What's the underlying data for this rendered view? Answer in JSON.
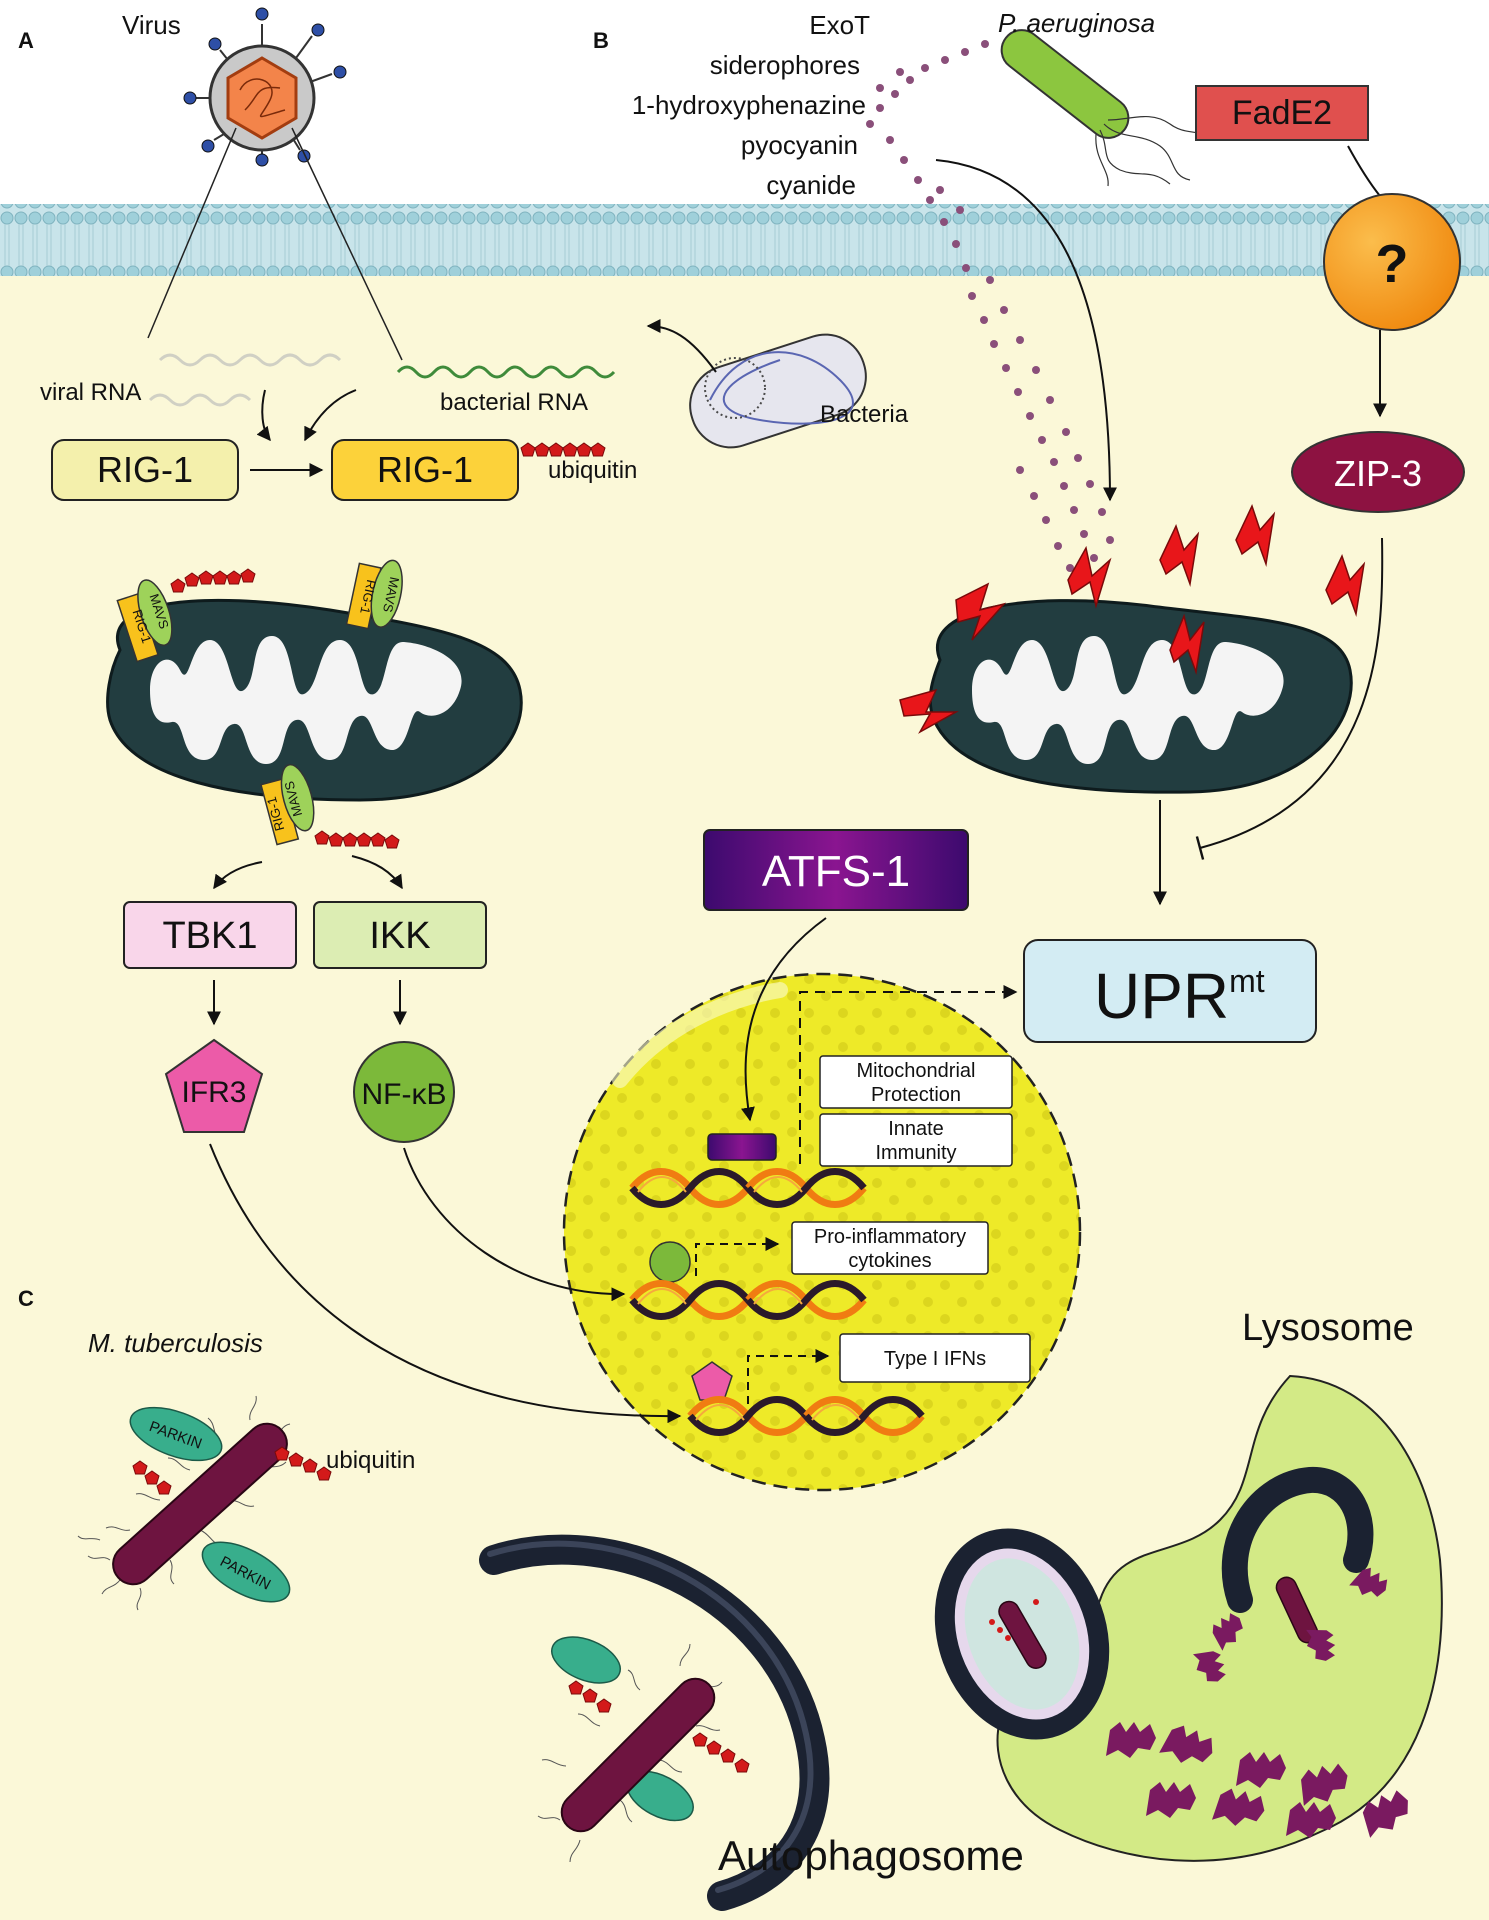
{
  "panels": {
    "a": "A",
    "b": "B",
    "c": "C"
  },
  "labels": {
    "virus": "Virus",
    "viral_rna": "viral RNA",
    "bacterial_rna": "bacterial RNA",
    "bacteria": "Bacteria",
    "ubiquitin_top": "ubiquitin",
    "ubiquitin_c": "ubiquitin",
    "p_aeruginosa": "P. aeruginosa",
    "m_tuberculosis": "M. tuberculosis",
    "autophagosome": "Autophagosome",
    "lysosome": "Lysosome"
  },
  "toxins": [
    "ExoT",
    "siderophores",
    "1-hydroxyphenazine",
    "pyocyanin",
    "cyanide"
  ],
  "boxes": {
    "rig1_a": "RIG-1",
    "rig1_b": "RIG-1",
    "fade2": "FadE2",
    "question": "?",
    "zip3": "ZIP-3",
    "atfs1": "ATFS-1",
    "upr_main": "UPR",
    "upr_sup": "mt",
    "tbk1": "TBK1",
    "ikk": "IKK",
    "ifr3": "IFR3",
    "nfkb": "NF-κB"
  },
  "small_labels": {
    "mavs": "MAVS",
    "rig1": "RIG-1",
    "parkin": "PARKIN"
  },
  "nucleus": {
    "mito_protection_1": "Mitochondrial",
    "mito_protection_2": "Protection",
    "innate_1": "Innate",
    "innate_2": "Immunity",
    "cytokines_1": "Pro-inflammatory",
    "cytokines_2": "cytokines",
    "ifns": "Type I IFNs"
  },
  "colors": {
    "cytoplasm": "#fbf8d8",
    "membrane": "#bfe0e8",
    "mito": "#223d40",
    "rig1_a": "#f4f0ac",
    "rig1_b": "#fcd23a",
    "tbk1": "#f9d6ea",
    "ikk": "#dcedb3",
    "ifr3": "#ec5ba8",
    "nfkb": "#7cb93a",
    "fade2": "#e0504e",
    "question": "#f7a21e",
    "zip3": "#8d1241",
    "atfs1": "#5a0d7a",
    "upr": "#d3ecf3",
    "nucleus": "#f0ee2a",
    "dna_a": "#f07c12",
    "dna_b": "#2b1a2a",
    "ubiquitin": "#d31a1a",
    "bacillus": "#6e1440",
    "parkin": "#38ae8c",
    "lysosome": "#d3ea86",
    "lightning": "#e8161a"
  }
}
